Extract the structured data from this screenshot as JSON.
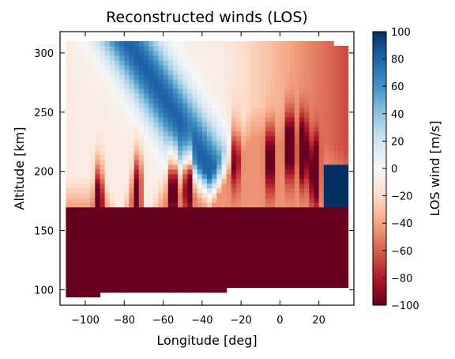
{
  "chart_data": {
    "type": "heatmap",
    "title": "Reconstructed winds (LOS)",
    "xlabel": "Longitude [deg]",
    "ylabel": "Altitude [km]",
    "xlim": [
      -113,
      38
    ],
    "ylim": [
      87,
      318
    ],
    "xticks": [
      -100,
      -80,
      -60,
      -40,
      -20,
      0,
      20
    ],
    "xtick_labels": [
      "−100",
      "−80",
      "−60",
      "−40",
      "−20",
      "0",
      "20"
    ],
    "yticks": [
      100,
      150,
      200,
      250,
      300
    ],
    "ytick_labels": [
      "100",
      "150",
      "200",
      "250",
      "300"
    ],
    "colorbar": {
      "label": "LOS wind [m/s]",
      "range": [
        -100,
        100
      ],
      "ticks": [
        100,
        80,
        60,
        40,
        20,
        0,
        -20,
        -40,
        -60,
        -80,
        -100
      ],
      "tick_labels": [
        "100",
        "80",
        "60",
        "40",
        "20",
        "0",
        "−20",
        "−40",
        "−60",
        "−80",
        "−100"
      ],
      "colormap": "RdBu",
      "colors": [
        "#67001f",
        "#b2182b",
        "#d6604d",
        "#f4a582",
        "#fddbc7",
        "#f7f7f7",
        "#d1e5f0",
        "#92c5de",
        "#4393c3",
        "#2166ac",
        "#053061"
      ]
    },
    "grid": false,
    "field": {
      "x_range": [
        -110,
        35
      ],
      "lower_region": {
        "alt_range": [
          95,
          170
        ],
        "value": -100
      },
      "upper_boundary_alt": 310,
      "valid_top_rise": [
        [
          -100,
          197
        ],
        [
          -90,
          197
        ],
        [
          -82,
          168
        ],
        [
          -76,
          208
        ],
        [
          -68,
          168
        ],
        [
          -60,
          202
        ],
        [
          -50,
          212
        ],
        [
          -44,
          208
        ],
        [
          -36,
          195
        ],
        [
          -26,
          228
        ],
        [
          -14,
          258
        ],
        [
          0,
          254
        ],
        [
          10,
          242
        ],
        [
          20,
          230
        ],
        [
          35,
          216
        ]
      ],
      "fill_region": {
        "x_range": [
          20,
          35
        ],
        "alt_range": [
          170,
          205
        ],
        "value": 100
      },
      "blue_band": {
        "center_lon_at_310": -78,
        "slope_deg_per_km": 0.28,
        "width": 15,
        "peak": 90
      },
      "streaks": [
        {
          "lon": -93,
          "alt_center": 182,
          "strength": -90
        },
        {
          "lon": -73,
          "alt_center": 188,
          "strength": -95
        },
        {
          "lon": -55,
          "alt_center": 188,
          "strength": -95
        },
        {
          "lon": -47,
          "alt_center": 195,
          "strength": -100
        },
        {
          "lon": -23,
          "alt_center": 215,
          "strength": -70
        },
        {
          "lon": -5,
          "alt_center": 210,
          "strength": -80
        },
        {
          "lon": 5,
          "alt_center": 222,
          "strength": -100
        },
        {
          "lon": 12,
          "alt_center": 218,
          "strength": -100
        },
        {
          "lon": 18,
          "alt_center": 200,
          "strength": -100
        }
      ]
    }
  }
}
